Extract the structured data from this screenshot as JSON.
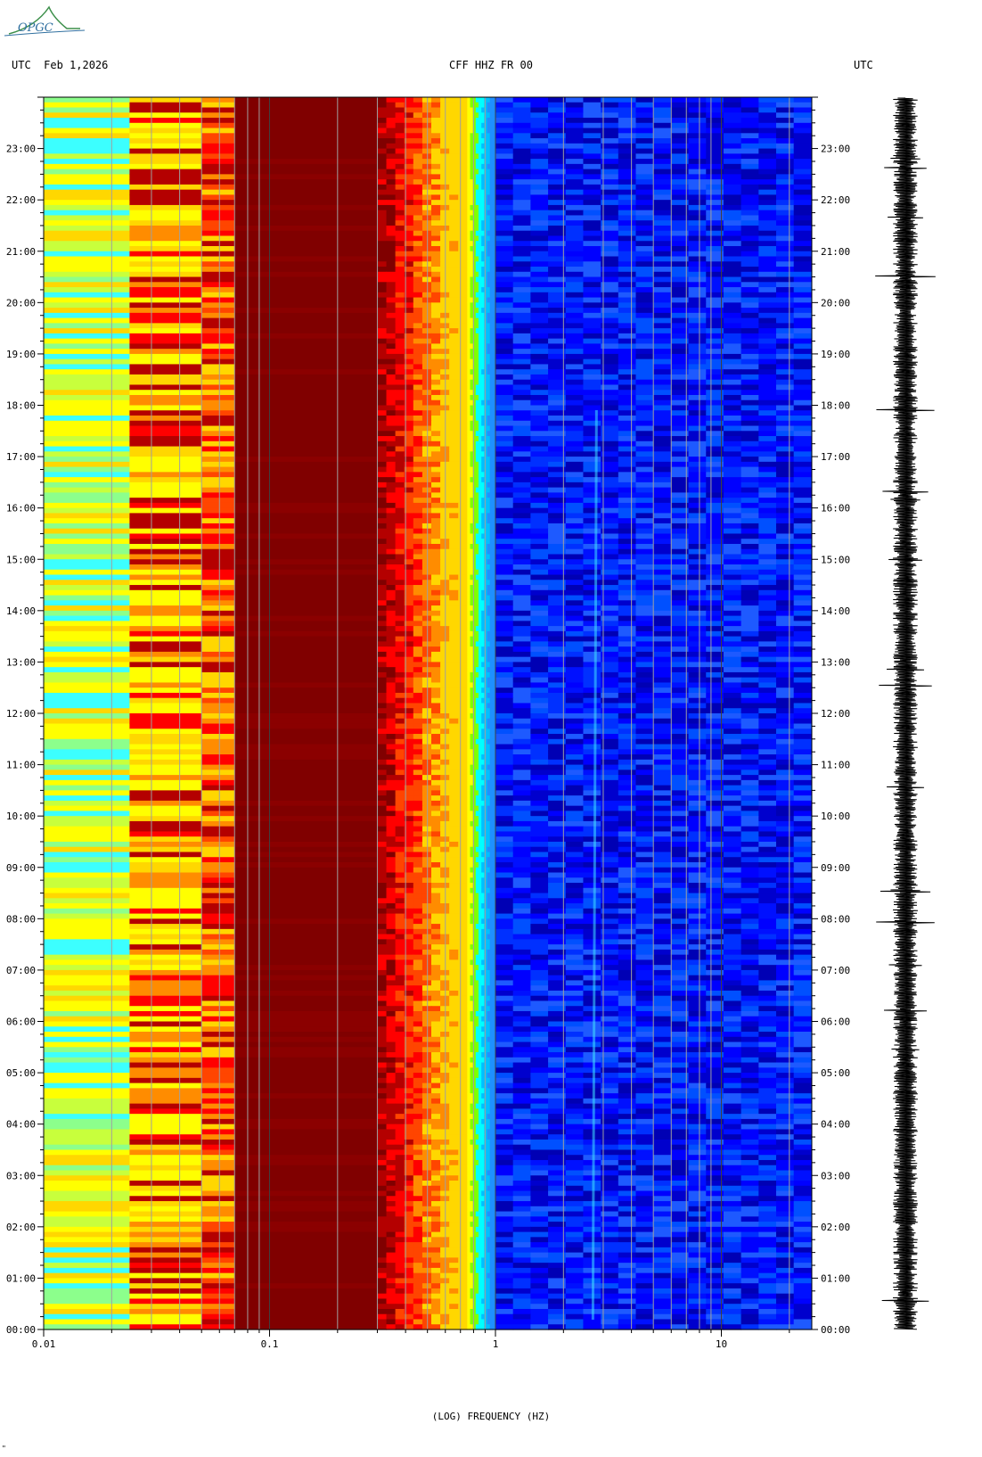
{
  "header": {
    "left": "UTC  Feb 1,2026",
    "center": "CFF HHZ FR 00",
    "right": "UTC"
  },
  "logo": {
    "text": "OPGC"
  },
  "footer_mark": "\"",
  "chart_data": {
    "type": "heatmap",
    "title": "CFF HHZ FR 00",
    "date_label": "Feb 1,2026",
    "xlabel": "(LOG) FREQUENCY (HZ)",
    "ylabel": "UTC",
    "x_scale": "log",
    "xlim": [
      0.01,
      25
    ],
    "x_ticks": [
      {
        "value": 0.01,
        "label": "0.01"
      },
      {
        "value": 0.1,
        "label": "0.1"
      },
      {
        "value": 1,
        "label": "1"
      },
      {
        "value": 10,
        "label": "10"
      }
    ],
    "ylim_hours": [
      0,
      24
    ],
    "y_ticks": [
      "00:00",
      "01:00",
      "02:00",
      "03:00",
      "04:00",
      "05:00",
      "06:00",
      "07:00",
      "08:00",
      "09:00",
      "10:00",
      "11:00",
      "12:00",
      "13:00",
      "14:00",
      "15:00",
      "16:00",
      "17:00",
      "18:00",
      "19:00",
      "20:00",
      "21:00",
      "22:00",
      "23:00"
    ],
    "frequency_bands": [
      {
        "from": 0.01,
        "to": 0.024,
        "level": "yellow-cyan"
      },
      {
        "from": 0.024,
        "to": 0.05,
        "level": "yellow-red"
      },
      {
        "from": 0.05,
        "to": 0.07,
        "level": "red-orange"
      },
      {
        "from": 0.07,
        "to": 0.3,
        "level": "dark-red"
      },
      {
        "from": 0.3,
        "to": 0.75,
        "level": "red-orange-yellow"
      },
      {
        "from": 0.75,
        "to": 1.0,
        "level": "cyan-transition"
      },
      {
        "from": 1.0,
        "to": 25,
        "level": "blue"
      }
    ],
    "colorscale": [
      "#00008b",
      "#0000ff",
      "#00bfff",
      "#00ffff",
      "#ffff00",
      "#ff8c00",
      "#ff0000",
      "#800000"
    ],
    "trace": {
      "type": "seismogram",
      "times": "00:00-24:00"
    }
  }
}
